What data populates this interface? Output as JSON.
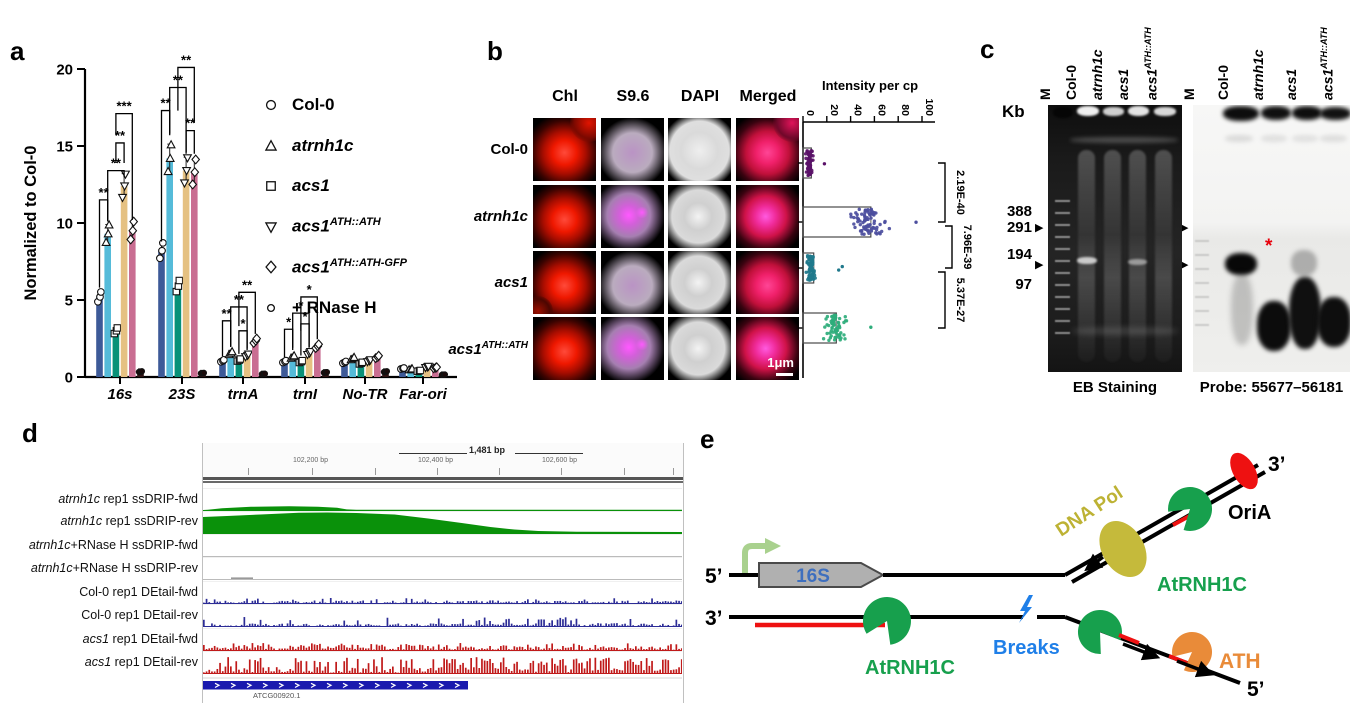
{
  "panel_letters": {
    "a": "a",
    "b": "b",
    "c": "c",
    "d": "d",
    "e": "e"
  },
  "panel_a": {
    "chart_data": {
      "type": "bar",
      "ylabel": "Normalized to Col-0",
      "ylim": [
        0,
        20
      ],
      "yticks": [
        "0",
        "5",
        "10",
        "15",
        "20"
      ],
      "categories": [
        "16s",
        "23S",
        "trnA",
        "trnI",
        "No-TR",
        "Far-ori"
      ],
      "series": [
        {
          "name": "Col-0",
          "italic": false,
          "marker": "circle",
          "color": "#3D5A98",
          "values": [
            5.2,
            8.2,
            1.05,
            1.0,
            0.95,
            0.55
          ]
        },
        {
          "name": "atrnh1c",
          "italic": true,
          "marker": "triangle-up",
          "color": "#55BBD9",
          "values": [
            9.3,
            14.2,
            1.55,
            1.3,
            1.2,
            0.5
          ]
        },
        {
          "name": "acs1",
          "italic": true,
          "marker": "square",
          "color": "#089178",
          "values": [
            3.0,
            5.9,
            1.1,
            1.0,
            0.9,
            0.4
          ]
        },
        {
          "name": "acs1^ATH::ATH",
          "italic": true,
          "marker": "triangle-down",
          "color": "#E5C182",
          "values": [
            12.4,
            13.4,
            1.4,
            1.55,
            1.05,
            0.65
          ]
        },
        {
          "name": "acs1^ATH::ATH-GFP",
          "italic": true,
          "marker": "diamond",
          "color": "#C96E92",
          "values": [
            9.5,
            13.3,
            2.35,
            2.0,
            1.3,
            0.6
          ]
        },
        {
          "name": "+ RNase H",
          "italic": false,
          "marker": "circle",
          "color": "#2E1212",
          "values": [
            0.35,
            0.25,
            0.2,
            0.3,
            0.35,
            0.15
          ]
        }
      ],
      "significance": [
        {
          "cat": 0,
          "from": 0,
          "to": 1,
          "label": "**",
          "y": 11.5,
          "l1": 5.8,
          "l2": 10.1
        },
        {
          "cat": 0,
          "from": 1,
          "to": 3,
          "label": "**",
          "y": 13.4,
          "l1": 10.2,
          "l2": 13.0
        },
        {
          "cat": 0,
          "from": 2,
          "to": 3,
          "label": "**",
          "y": 15.2,
          "l1": 13.9,
          "l2": 13.9
        },
        {
          "cat": 0,
          "from": 2,
          "to": 4,
          "label": "***",
          "y": 17.1,
          "l1": 15.7,
          "l2": 10.2
        },
        {
          "cat": 1,
          "from": 0,
          "to": 1,
          "label": "**",
          "y": 17.3,
          "l1": 8.8,
          "l2": 15.7
        },
        {
          "cat": 1,
          "from": 1,
          "to": 3,
          "label": "**",
          "y": 18.8,
          "l1": 15.8,
          "l2": 14.6
        },
        {
          "cat": 1,
          "from": 3,
          "to": 4,
          "label": "**",
          "y": 16.0,
          "l1": 14.5,
          "l2": 14.5
        },
        {
          "cat": 1,
          "from": 2,
          "to": 4,
          "label": "**",
          "y": 20.1,
          "l1": 17.3,
          "l2": 16.5
        },
        {
          "cat": 2,
          "from": 0,
          "to": 1,
          "label": "**",
          "y": 3.65,
          "l1": 1.35,
          "l2": 1.95
        },
        {
          "cat": 2,
          "from": 1,
          "to": 3,
          "label": "**",
          "y": 4.55,
          "l1": 2.0,
          "l2": 1.85
        },
        {
          "cat": 2,
          "from": 2,
          "to": 3,
          "label": "*",
          "y": 3.0,
          "l1": 1.5,
          "l2": 1.75
        },
        {
          "cat": 2,
          "from": 2,
          "to": 4,
          "label": "**",
          "y": 5.5,
          "l1": 3.3,
          "l2": 2.8
        },
        {
          "cat": 3,
          "from": 0,
          "to": 1,
          "label": "*",
          "y": 3.1,
          "l1": 1.3,
          "l2": 1.75
        },
        {
          "cat": 3,
          "from": 1,
          "to": 3,
          "label": "*",
          "y": 4.15,
          "l1": 1.9,
          "l2": 1.95
        },
        {
          "cat": 3,
          "from": 2,
          "to": 3,
          "label": "*",
          "y": 3.45,
          "l1": 1.4,
          "l2": 1.9
        },
        {
          "cat": 3,
          "from": 2,
          "to": 4,
          "label": "*",
          "y": 5.2,
          "l1": 3.0,
          "l2": 2.45
        }
      ]
    }
  },
  "panel_b": {
    "col_headers": [
      "Chl",
      "S9.6",
      "DAPI",
      "Merged"
    ],
    "rows": [
      {
        "label": "Col-0",
        "italic": false
      },
      {
        "label": "atrnh1c",
        "italic": true
      },
      {
        "label": "acs1",
        "italic": true
      },
      {
        "label": "acs1^ATH::ATH",
        "italic": true
      }
    ],
    "scale_bar": "1μm",
    "chart_data": {
      "type": "scatter",
      "title": "Intensity per cp",
      "ticks": [
        "0",
        "20",
        "40",
        "60",
        "80",
        "100"
      ],
      "tick_values": [
        0,
        20,
        40,
        60,
        80,
        100
      ],
      "groups": [
        {
          "name": "Col-0",
          "color": "#5A1168",
          "mean": 7,
          "cluster": 5.5,
          "sd": 2.6,
          "min": 1.5,
          "max": 14,
          "n": 55,
          "outliers": [
            18
          ]
        },
        {
          "name": "atrnh1c",
          "color": "#4C4E9E",
          "mean": 57,
          "cluster": 55,
          "sd": 11,
          "min": 38,
          "max": 92,
          "n": 80,
          "outliers": [
            95
          ]
        },
        {
          "name": "acs1",
          "color": "#20798C",
          "mean": 9,
          "cluster": 6.5,
          "sd": 3,
          "min": 2,
          "max": 17,
          "n": 70,
          "outliers": [
            30,
            33
          ]
        },
        {
          "name": "acs1^ATH::ATH",
          "color": "#2EAD7B",
          "mean": 28,
          "cluster": 27,
          "sd": 7,
          "min": 16,
          "max": 50,
          "n": 62,
          "outliers": [
            57
          ]
        }
      ],
      "pvalues": [
        "2.19E-40",
        "7.96E-39",
        "5.37E-27"
      ]
    }
  },
  "panel_c": {
    "kb_label": "Kb",
    "size_markers": [
      "388",
      "291",
      "194",
      "97"
    ],
    "lanes": [
      {
        "label": "M",
        "italic": false
      },
      {
        "label": "Col-0",
        "italic": false
      },
      {
        "label": "atrnh1c",
        "italic": true
      },
      {
        "label": "acs1",
        "italic": true
      },
      {
        "label": "acs1^ATH::ATH",
        "italic": true
      }
    ],
    "captions": {
      "left": "EB Staining",
      "right": "Probe: 55677–56181"
    },
    "asterisk": "*",
    "arrow_glyph": "▶"
  },
  "panel_d": {
    "ruler_span": "1,481 bp",
    "ruler_ticks": [
      "102,200 bp",
      "102,400 bp",
      "102,600 bp"
    ],
    "gene_label": "ATCG00920.1",
    "tracks": [
      {
        "em": "atrnh1c",
        "rest": " rep1 ssDRIP-fwd",
        "color": "#0A910A",
        "profile": "bump"
      },
      {
        "em": "atrnh1c",
        "rest": " rep1 ssDRIP-rev",
        "color": "#0A910A",
        "profile": "hill"
      },
      {
        "em": "atrnh1c",
        "rest": "+RNase H ssDRIP-fwd",
        "color": "#9a9a9a",
        "profile": "empty"
      },
      {
        "em": "atrnh1c",
        "rest": "+RNase H ssDRIP-rev",
        "color": "#9a9a9a",
        "profile": "trace"
      },
      {
        "em": "",
        "rest": "Col-0 rep1 DEtail-fwd",
        "color": "#2C2C96",
        "profile": "noise1"
      },
      {
        "em": "",
        "rest": "Col-0 rep1 DEtail-rev",
        "color": "#2C2C96",
        "profile": "noise2"
      },
      {
        "em": "acs1",
        "rest": " rep1 DEtail-fwd",
        "color": "#C01A1A",
        "profile": "noise3"
      },
      {
        "em": "acs1",
        "rest": " rep1 DEtail-rev",
        "color": "#C01A1A",
        "profile": "noise4"
      }
    ],
    "profiles": {
      "hill": {
        "points": [
          [
            0,
            16
          ],
          [
            0.05,
            17
          ],
          [
            0.12,
            18.5
          ],
          [
            0.2,
            20.2
          ],
          [
            0.26,
            20.5
          ],
          [
            0.32,
            20
          ],
          [
            0.4,
            18.5
          ],
          [
            0.47,
            14.5
          ],
          [
            0.54,
            10
          ],
          [
            0.6,
            6
          ],
          [
            0.65,
            3.5
          ],
          [
            0.7,
            2
          ],
          [
            0.78,
            1.2
          ],
          [
            1,
            1
          ]
        ]
      },
      "bump": {
        "points": [
          [
            0.01,
            0.3
          ],
          [
            0.04,
            1.8
          ],
          [
            0.1,
            3.2
          ],
          [
            0.18,
            3.8
          ],
          [
            0.24,
            3.2
          ],
          [
            0.28,
            2.2
          ],
          [
            0.3,
            0.6
          ],
          [
            0.32,
            0.2
          ],
          [
            1,
            0.2
          ]
        ]
      },
      "noise1": {
        "segs": [
          [
            0,
            1,
            0,
            2.6
          ]
        ],
        "spikeP": 0.1,
        "spikeMax": 5
      },
      "noise2": {
        "segs": [
          [
            0,
            0.55,
            0,
            2.6
          ],
          [
            0.55,
            0.78,
            0.5,
            8.5
          ],
          [
            0.78,
            1,
            0,
            3
          ]
        ],
        "spikeP": 0.12,
        "spikeMax": 9
      },
      "noise3": {
        "segs": [
          [
            0,
            0.52,
            0.8,
            5.5
          ],
          [
            0.52,
            1,
            0.4,
            4
          ]
        ],
        "spikeP": 0.15,
        "spikeMax": 7
      },
      "noise4": {
        "segs": [
          [
            0,
            0.5,
            1,
            7
          ],
          [
            0.5,
            0.97,
            3,
            15.5
          ],
          [
            0.97,
            1,
            1.5,
            8
          ]
        ],
        "spikeP": 0.2,
        "spikeMax": 16
      }
    }
  },
  "panel_e": {
    "labels": {
      "five_prime_left": "5’",
      "three_prime_left": "3’",
      "three_prime_right": "3’",
      "five_prime_right": "5’",
      "gene": "16S",
      "dna_pol": "DNA Pol",
      "ori_a": "OriA",
      "atrnh1c_right": "AtRNH1C",
      "atrnh1c_left": "AtRNH1C",
      "breaks": "Breaks",
      "ath": "ATH"
    }
  }
}
